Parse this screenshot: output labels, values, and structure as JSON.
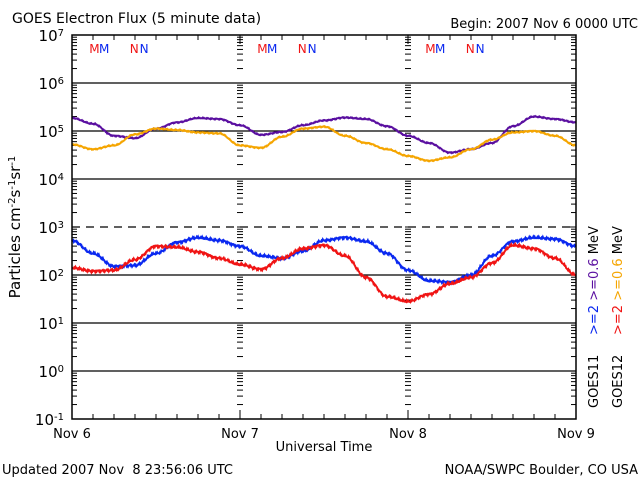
{
  "header": {
    "title": "GOES Electron Flux (5 minute data)",
    "begin": "Begin: 2007 Nov 6 0000 UTC"
  },
  "footer": {
    "updated": "Updated 2007 Nov  8 23:56:06 UTC",
    "credit": "NOAA/SWPC Boulder, CO USA"
  },
  "chart_data": {
    "type": "line",
    "title": "GOES Electron Flux (5 minute data)",
    "xlabel": "Universal Time",
    "ylabel": "Particles cm-2 s-1 sr-1",
    "yscale": "log",
    "ylim": [
      0.1,
      10000000
    ],
    "xlim_hours": [
      0,
      72
    ],
    "x_ticks": [
      "Nov 6",
      "Nov 7",
      "Nov 8",
      "Nov 9"
    ],
    "y_ticks": [
      {
        "base": "10",
        "exp": "7"
      },
      {
        "base": "10",
        "exp": "6"
      },
      {
        "base": "10",
        "exp": "5"
      },
      {
        "base": "10",
        "exp": "4"
      },
      {
        "base": "10",
        "exp": "3"
      },
      {
        "base": "10",
        "exp": "2"
      },
      {
        "base": "10",
        "exp": "1"
      },
      {
        "base": "10",
        "exp": "0"
      },
      {
        "base": "10",
        "exp": "-1"
      }
    ],
    "threshold_lines": [
      {
        "value": 1000000,
        "style": "solid"
      },
      {
        "value": 100000,
        "style": "solid"
      },
      {
        "value": 10000,
        "style": "solid"
      },
      {
        "value": 1000,
        "style": "dashed"
      },
      {
        "value": 100,
        "style": "solid"
      },
      {
        "value": 10,
        "style": "solid"
      },
      {
        "value": 1,
        "style": "solid"
      }
    ],
    "x_hours": [
      0,
      3,
      6,
      9,
      12,
      15,
      18,
      21,
      24,
      27,
      30,
      33,
      36,
      39,
      42,
      45,
      48,
      51,
      54,
      57,
      60,
      63,
      66,
      69,
      72
    ],
    "series": [
      {
        "name": "GOES11 >=0.6 MeV",
        "color": "#5a0fa0",
        "log10_values": [
          5.27,
          5.15,
          4.9,
          4.85,
          5.05,
          5.18,
          5.27,
          5.25,
          5.12,
          4.92,
          4.98,
          5.12,
          5.22,
          5.28,
          5.25,
          5.1,
          4.9,
          4.75,
          4.55,
          4.62,
          4.75,
          5.1,
          5.3,
          5.25,
          5.18
        ]
      },
      {
        "name": "GOES12 >=0.6 MeV",
        "color": "#f5a500",
        "log10_values": [
          4.72,
          4.62,
          4.7,
          4.93,
          5.05,
          5.02,
          4.97,
          4.95,
          4.7,
          4.65,
          4.88,
          5.05,
          5.09,
          4.9,
          4.75,
          4.62,
          4.48,
          4.38,
          4.45,
          4.62,
          4.82,
          4.97,
          5.0,
          4.9,
          4.7
        ]
      },
      {
        "name": "GOES11 >=2 MeV",
        "color": "#0a28f0",
        "log10_values": [
          2.72,
          2.45,
          2.18,
          2.2,
          2.45,
          2.68,
          2.78,
          2.72,
          2.6,
          2.4,
          2.35,
          2.5,
          2.72,
          2.78,
          2.7,
          2.45,
          2.1,
          1.88,
          1.85,
          2.0,
          2.4,
          2.7,
          2.78,
          2.75,
          2.6
        ]
      },
      {
        "name": "GOES12 >=2 MeV",
        "color": "#f01414",
        "log10_values": [
          2.15,
          2.08,
          2.1,
          2.32,
          2.6,
          2.58,
          2.48,
          2.35,
          2.22,
          2.12,
          2.35,
          2.55,
          2.62,
          2.4,
          1.95,
          1.55,
          1.45,
          1.6,
          1.82,
          1.95,
          2.25,
          2.62,
          2.55,
          2.35,
          2.0
        ]
      }
    ],
    "legend": [
      {
        "label": "GOES11",
        "items": [
          {
            "text": ">=2",
            "color": "#0a28f0"
          },
          {
            "text": ">=0.6",
            "color": "#5a0fa0"
          }
        ],
        "unit": "MeV"
      },
      {
        "label": "GOES12",
        "items": [
          {
            "text": ">=2",
            "color": "#f01414"
          },
          {
            "text": ">=0.6",
            "color": "#f5a500"
          }
        ],
        "unit": "MeV"
      }
    ],
    "legend_placement": "right",
    "markers": [
      {
        "label": "M",
        "color": "#f01414",
        "hour": 3.2
      },
      {
        "label": "M",
        "color": "#0a28f0",
        "hour": 4.6
      },
      {
        "label": "N",
        "color": "#f01414",
        "hour": 8.9
      },
      {
        "label": "N",
        "color": "#0a28f0",
        "hour": 10.3
      },
      {
        "label": "M",
        "color": "#f01414",
        "hour": 27.2
      },
      {
        "label": "M",
        "color": "#0a28f0",
        "hour": 28.6
      },
      {
        "label": "N",
        "color": "#f01414",
        "hour": 32.9
      },
      {
        "label": "N",
        "color": "#0a28f0",
        "hour": 34.3
      },
      {
        "label": "M",
        "color": "#f01414",
        "hour": 51.2
      },
      {
        "label": "M",
        "color": "#0a28f0",
        "hour": 52.6
      },
      {
        "label": "N",
        "color": "#f01414",
        "hour": 56.9
      },
      {
        "label": "N",
        "color": "#0a28f0",
        "hour": 58.3
      }
    ]
  }
}
